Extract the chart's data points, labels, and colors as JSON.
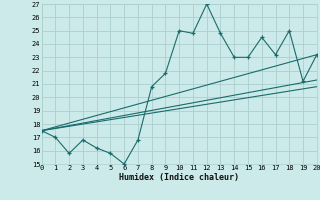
{
  "xlabel": "Humidex (Indice chaleur)",
  "xlim": [
    0,
    20
  ],
  "ylim": [
    15,
    27
  ],
  "xticks": [
    0,
    1,
    2,
    3,
    4,
    5,
    6,
    7,
    8,
    9,
    10,
    11,
    12,
    13,
    14,
    15,
    16,
    17,
    18,
    19,
    20
  ],
  "yticks": [
    15,
    16,
    17,
    18,
    19,
    20,
    21,
    22,
    23,
    24,
    25,
    26,
    27
  ],
  "bg_color": "#cceaea",
  "grid_color": "#aacfcf",
  "line_color": "#1a6b6b",
  "main_series_x": [
    0,
    1,
    2,
    3,
    4,
    5,
    6,
    7,
    8,
    9,
    10,
    11,
    12,
    13,
    14,
    15,
    16,
    17,
    18,
    19,
    20
  ],
  "main_series_y": [
    17.5,
    17.0,
    15.8,
    16.8,
    16.2,
    15.8,
    15.0,
    16.8,
    20.8,
    21.8,
    25.0,
    24.8,
    27.0,
    24.8,
    23.0,
    23.0,
    24.5,
    23.2,
    25.0,
    21.2,
    23.2
  ],
  "line1_x": [
    0,
    20
  ],
  "line1_y": [
    17.5,
    23.2
  ],
  "line2_x": [
    0,
    20
  ],
  "line2_y": [
    17.5,
    21.3
  ],
  "line3_x": [
    0,
    20
  ],
  "line3_y": [
    17.5,
    20.8
  ]
}
